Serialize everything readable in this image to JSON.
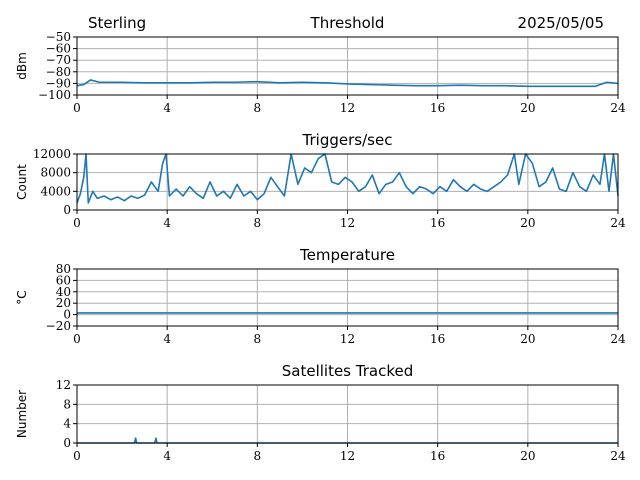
{
  "header": {
    "station": "Sterling",
    "date": "2025/05/05"
  },
  "chart_data": [
    {
      "type": "line",
      "title": "Threshold",
      "ylabel": "dBm",
      "xlim": [
        0,
        24
      ],
      "ylim": [
        -100,
        -50
      ],
      "xticks": [
        0,
        4,
        8,
        12,
        16,
        20,
        24
      ],
      "yticks": [
        -100,
        -90,
        -80,
        -70,
        -60,
        -50
      ],
      "ytick_labels": [
        "−100",
        "−90",
        "−80",
        "−70",
        "−60",
        "−50"
      ],
      "grid": true,
      "color": "#1f77b4",
      "x": [
        0,
        0.3,
        0.6,
        1,
        2,
        3,
        4,
        5,
        6,
        7,
        8,
        9,
        10,
        11,
        12,
        13,
        14,
        15,
        16,
        17,
        18,
        19,
        20,
        21,
        22,
        23,
        23.5,
        24
      ],
      "y": [
        -92,
        -91,
        -87,
        -89,
        -89,
        -89.5,
        -89.5,
        -89.5,
        -89,
        -89,
        -88.5,
        -89.5,
        -89,
        -89.5,
        -90.5,
        -91,
        -91.5,
        -92,
        -92,
        -91.5,
        -92,
        -92,
        -92.5,
        -92.5,
        -92.5,
        -92.5,
        -89,
        -90
      ]
    },
    {
      "type": "line",
      "title": "Triggers/sec",
      "ylabel": "Count",
      "xlim": [
        0,
        24
      ],
      "ylim": [
        0,
        12000
      ],
      "xticks": [
        0,
        4,
        8,
        12,
        16,
        20,
        24
      ],
      "yticks": [
        0,
        4000,
        8000,
        12000
      ],
      "ytick_labels": [
        "0",
        "4000",
        "8000",
        "12000"
      ],
      "grid": true,
      "color": "#1f77b4",
      "x": [
        0,
        0.15,
        0.3,
        0.4,
        0.5,
        0.7,
        0.9,
        1.2,
        1.5,
        1.8,
        2.1,
        2.4,
        2.7,
        3.0,
        3.3,
        3.6,
        3.8,
        3.95,
        4.1,
        4.4,
        4.7,
        5.0,
        5.3,
        5.6,
        5.9,
        6.2,
        6.5,
        6.8,
        7.1,
        7.4,
        7.7,
        8.0,
        8.3,
        8.6,
        8.9,
        9.2,
        9.5,
        9.8,
        10.1,
        10.4,
        10.7,
        11.0,
        11.3,
        11.6,
        11.9,
        12.2,
        12.5,
        12.8,
        13.1,
        13.4,
        13.7,
        14.0,
        14.3,
        14.6,
        14.9,
        15.2,
        15.5,
        15.8,
        16.1,
        16.4,
        16.7,
        17.0,
        17.3,
        17.6,
        17.9,
        18.2,
        18.5,
        18.8,
        19.1,
        19.4,
        19.6,
        19.9,
        20.2,
        20.5,
        20.8,
        21.1,
        21.4,
        21.7,
        22.0,
        22.3,
        22.6,
        22.9,
        23.2,
        23.4,
        23.6,
        23.8,
        24.0
      ],
      "y": [
        1500,
        3500,
        7000,
        12000,
        1500,
        4000,
        2500,
        3000,
        2200,
        2800,
        2000,
        3000,
        2500,
        3200,
        6000,
        4000,
        10000,
        12000,
        3000,
        4500,
        3000,
        5000,
        3500,
        2500,
        6000,
        3000,
        4000,
        2500,
        5500,
        3000,
        4000,
        2200,
        3500,
        7000,
        5000,
        3000,
        12000,
        5500,
        9000,
        8000,
        11000,
        12000,
        6000,
        5500,
        7000,
        6000,
        4000,
        5000,
        7500,
        3500,
        5500,
        6000,
        8000,
        5000,
        3500,
        5000,
        4500,
        3500,
        5000,
        4000,
        6500,
        5000,
        4000,
        5500,
        4500,
        4000,
        5000,
        6000,
        7500,
        12000,
        5500,
        12000,
        10000,
        5000,
        6000,
        9000,
        4500,
        4000,
        8000,
        5000,
        4000,
        7500,
        5500,
        12000,
        4000,
        12000,
        3000
      ]
    },
    {
      "type": "line",
      "title": "Temperature",
      "ylabel": "°C",
      "xlim": [
        0,
        24
      ],
      "ylim": [
        -20,
        80
      ],
      "xticks": [
        0,
        4,
        8,
        12,
        16,
        20,
        24
      ],
      "yticks": [
        -20,
        0,
        20,
        40,
        60,
        80
      ],
      "ytick_labels": [
        "−20",
        "0",
        "20",
        "40",
        "60",
        "80"
      ],
      "grid": true,
      "color": "#1f77b4",
      "x": [
        0,
        24
      ],
      "y": [
        3,
        3
      ]
    },
    {
      "type": "line",
      "title": "Satellites Tracked",
      "ylabel": "Number",
      "xlim": [
        0,
        24
      ],
      "ylim": [
        0,
        12
      ],
      "xticks": [
        0,
        4,
        8,
        12,
        16,
        20,
        24
      ],
      "yticks": [
        0,
        4,
        8,
        12
      ],
      "ytick_labels": [
        "0",
        "4",
        "8",
        "12"
      ],
      "grid": true,
      "color": "#1f77b4",
      "x": [
        0,
        2.55,
        2.6,
        2.65,
        3.45,
        3.5,
        3.55,
        24
      ],
      "y": [
        0,
        0,
        1,
        0,
        0,
        1,
        0,
        0
      ]
    }
  ]
}
